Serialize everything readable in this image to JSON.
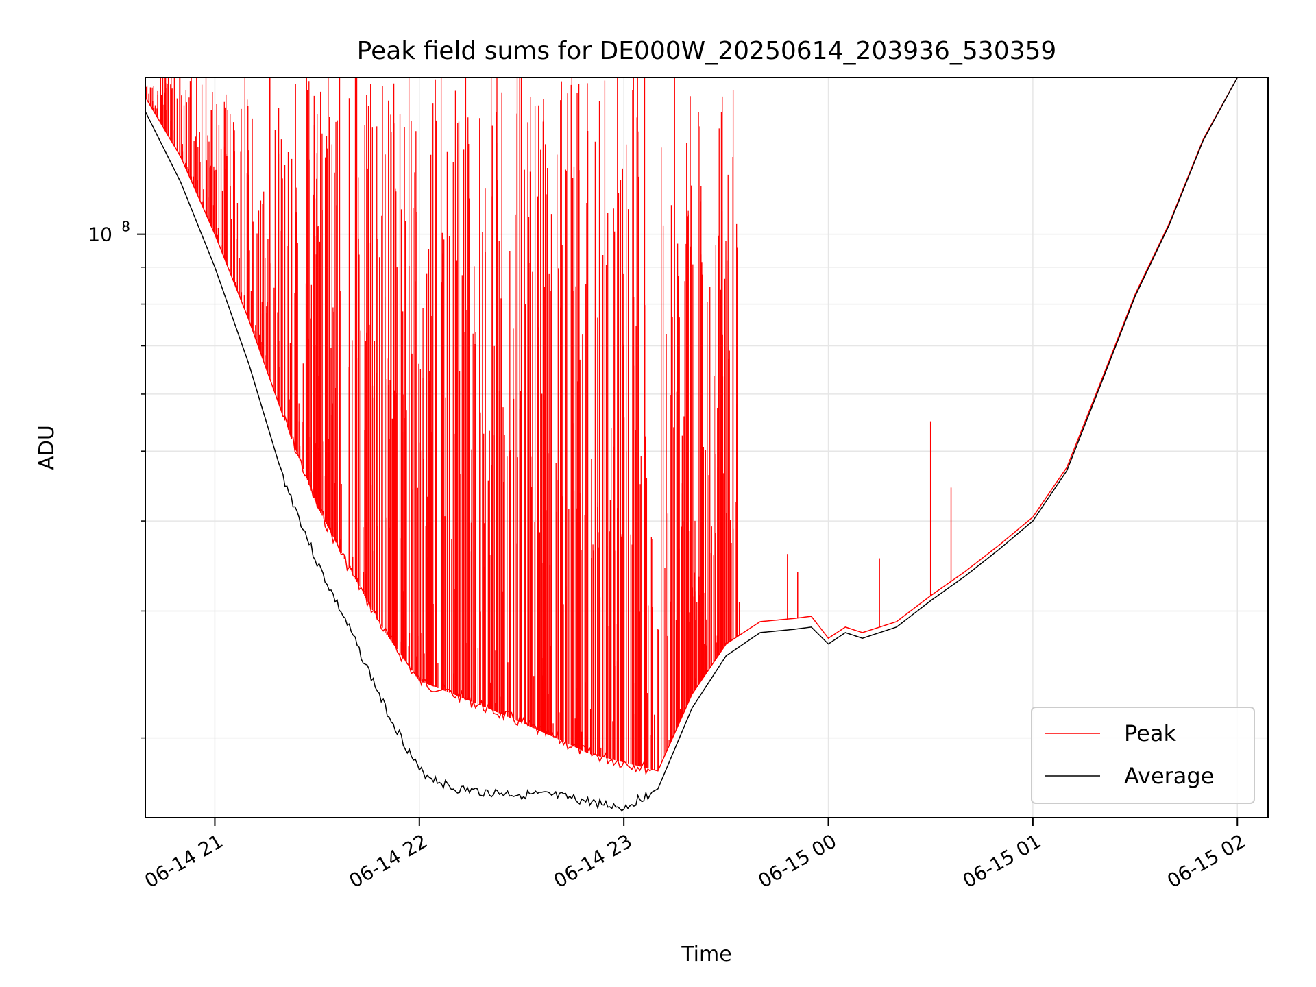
{
  "chart_data": {
    "type": "line",
    "title": "Peak field sums for DE000W_20250614_203936_530359",
    "xlabel": "Time",
    "ylabel": "ADU",
    "yscale": "log",
    "ylim": [
      15500000,
      165000000
    ],
    "xlim": [
      "2025-06-14 20:39:36",
      "2025-06-15 02:09:00"
    ],
    "x_ticks": [
      {
        "x": "2025-06-14 21:00",
        "label": "06-14 21"
      },
      {
        "x": "2025-06-14 22:00",
        "label": "06-14 22"
      },
      {
        "x": "2025-06-14 23:00",
        "label": "06-14 23"
      },
      {
        "x": "2025-06-15 00:00",
        "label": "06-15 00"
      },
      {
        "x": "2025-06-15 01:00",
        "label": "06-15 01"
      },
      {
        "x": "2025-06-15 02:00",
        "label": "06-15 02"
      }
    ],
    "y_ticks": [
      {
        "y": 100000000,
        "label_base": "10",
        "label_exp": "8"
      }
    ],
    "y_minor_ticks": [
      20000000,
      30000000,
      40000000,
      50000000,
      60000000,
      70000000,
      80000000,
      90000000,
      200000000
    ],
    "grid": true,
    "legend": "lower-right",
    "series": [
      {
        "name": "Average",
        "color": "#000000",
        "x": [
          "2025-06-14 20:39:36",
          "2025-06-14 20:50",
          "2025-06-14 21:00",
          "2025-06-14 21:10",
          "2025-06-14 21:20",
          "2025-06-14 21:30",
          "2025-06-14 21:40",
          "2025-06-14 21:50",
          "2025-06-14 22:00",
          "2025-06-14 22:10",
          "2025-06-14 22:20",
          "2025-06-14 22:30",
          "2025-06-14 22:40",
          "2025-06-14 22:50",
          "2025-06-14 23:00",
          "2025-06-14 23:10",
          "2025-06-14 23:20",
          "2025-06-14 23:30",
          "2025-06-14 23:40",
          "2025-06-14 23:50",
          "2025-06-14 23:55",
          "2025-06-15 00:00",
          "2025-06-15 00:05",
          "2025-06-15 00:10",
          "2025-06-15 00:20",
          "2025-06-15 00:30",
          "2025-06-15 00:40",
          "2025-06-15 00:50",
          "2025-06-15 01:00",
          "2025-06-15 01:10",
          "2025-06-15 01:20",
          "2025-06-15 01:30",
          "2025-06-15 01:40",
          "2025-06-15 01:50",
          "2025-06-15 02:00",
          "2025-06-15 02:09"
        ],
        "values": [
          148000000,
          118000000,
          90000000,
          66000000,
          46000000,
          35000000,
          28000000,
          22000000,
          18000000,
          17000000,
          16800000,
          16700000,
          16600000,
          16300000,
          16000000,
          17000000,
          22000000,
          26000000,
          28000000,
          28300000,
          28500000,
          27000000,
          28000000,
          27500000,
          28500000,
          31000000,
          33500000,
          36500000,
          40000000,
          47000000,
          62000000,
          82000000,
          103000000,
          135000000,
          165000000,
          165000000
        ]
      },
      {
        "name": "Peak",
        "color": "#ff0000",
        "x": [
          "2025-06-14 20:39:36",
          "2025-06-14 20:50",
          "2025-06-14 21:00",
          "2025-06-14 21:10",
          "2025-06-14 21:20",
          "2025-06-14 21:30",
          "2025-06-14 21:40",
          "2025-06-14 21:50",
          "2025-06-14 22:00",
          "2025-06-14 22:10",
          "2025-06-14 22:20",
          "2025-06-14 22:30",
          "2025-06-14 22:40",
          "2025-06-14 22:50",
          "2025-06-14 23:00",
          "2025-06-14 23:10",
          "2025-06-14 23:20",
          "2025-06-14 23:30",
          "2025-06-14 23:40",
          "2025-06-14 23:50",
          "2025-06-14 23:55",
          "2025-06-15 00:00",
          "2025-06-15 00:05",
          "2025-06-15 00:10",
          "2025-06-15 00:20",
          "2025-06-15 00:30",
          "2025-06-15 00:40",
          "2025-06-15 00:50",
          "2025-06-15 01:00",
          "2025-06-15 01:10",
          "2025-06-15 01:20",
          "2025-06-15 01:30",
          "2025-06-15 01:40",
          "2025-06-15 01:50",
          "2025-06-15 02:00",
          "2025-06-15 02:09"
        ],
        "values": [
          155000000,
          128000000,
          100000000,
          76000000,
          56000000,
          42000000,
          34000000,
          28000000,
          24000000,
          23000000,
          22000000,
          21000000,
          20000000,
          19000000,
          18500000,
          18000000,
          23000000,
          27000000,
          29000000,
          29300000,
          29500000,
          27500000,
          28500000,
          28000000,
          29000000,
          31500000,
          34000000,
          37000000,
          40500000,
          47500000,
          62500000,
          82500000,
          103500000,
          135500000,
          165000000,
          165000000
        ],
        "spikes_note": ""
      }
    ],
    "peak_spikes": [
      {
        "x": "2025-06-14 23:32",
        "y": 128000000
      },
      {
        "x": "2025-06-14 23:48",
        "y": 36000000
      },
      {
        "x": "2025-06-14 23:51",
        "y": 34000000
      },
      {
        "x": "2025-06-15 00:15",
        "y": 35500000
      },
      {
        "x": "2025-06-15 00:30",
        "y": 55000000
      },
      {
        "x": "2025-06-15 00:36",
        "y": 44500000
      }
    ]
  }
}
